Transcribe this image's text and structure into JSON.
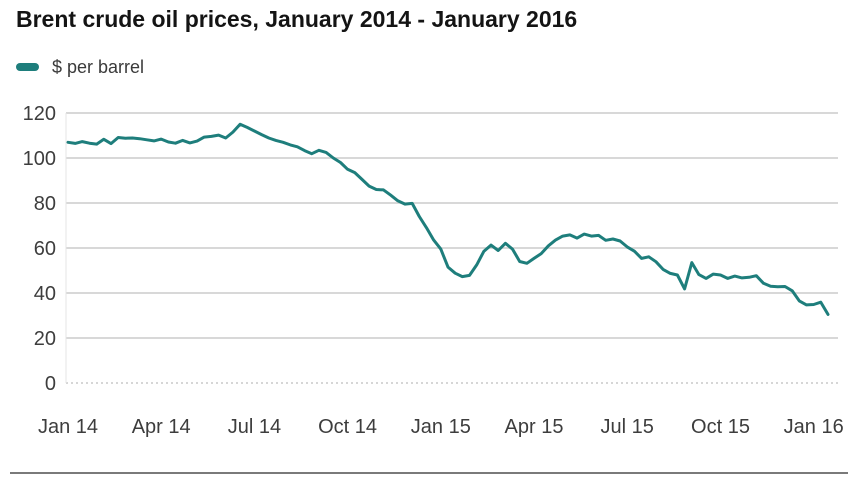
{
  "header": {
    "title": "Brent crude oil prices, January 2014 - January 2016"
  },
  "legend": {
    "label": "$ per barrel"
  },
  "colors": {
    "line": "#1E7E7C",
    "grid": "#cbcbcb",
    "baseline_dotted": "#c8c8c8",
    "axis_spine": "#e4e4e4",
    "axis_text": "#3d3d3d",
    "title_text": "#141414",
    "bottom_rule": "#7a7a7a",
    "background": "#ffffff"
  },
  "chart_data": {
    "type": "line",
    "title": "Brent crude oil prices, January 2014 - January 2016",
    "xlabel": "",
    "ylabel": "$ per barrel",
    "ylim": [
      0,
      120
    ],
    "y_ticks": [
      0,
      20,
      40,
      60,
      80,
      100,
      120
    ],
    "grid": "horizontal gridlines on, zero line dotted",
    "legend_position": "top-left",
    "x_tick_labels": [
      "Jan 14",
      "Apr 14",
      "Jul 14",
      "Oct 14",
      "Jan 15",
      "Apr 15",
      "Jul 15",
      "Oct 15",
      "Jan 16"
    ],
    "x_tick_indices": [
      0,
      13,
      26,
      39,
      52,
      65,
      78,
      91,
      104
    ],
    "x_unit": "weeks from January 2014",
    "series": [
      {
        "name": "$ per barrel",
        "color": "#1E7E7C",
        "values": [
          107.0,
          106.5,
          107.3,
          106.6,
          106.2,
          108.3,
          106.4,
          109.1,
          108.8,
          108.9,
          108.6,
          108.1,
          107.6,
          108.4,
          107.1,
          106.6,
          107.8,
          106.7,
          107.5,
          109.3,
          109.6,
          110.2,
          108.9,
          111.5,
          115.0,
          113.6,
          112.0,
          110.4,
          108.9,
          107.8,
          107.0,
          105.8,
          105.0,
          103.3,
          101.9,
          103.4,
          102.5,
          100.0,
          98.0,
          95.0,
          93.5,
          90.5,
          87.5,
          86.0,
          85.8,
          83.5,
          81.0,
          79.5,
          79.8,
          74.0,
          69.0,
          63.5,
          59.5,
          51.5,
          48.8,
          47.3,
          47.8,
          52.5,
          58.5,
          61.3,
          58.9,
          62.1,
          59.5,
          54.0,
          53.2,
          55.4,
          57.5,
          61.0,
          63.5,
          65.3,
          65.8,
          64.4,
          66.2,
          65.3,
          65.6,
          63.4,
          64.0,
          63.1,
          60.5,
          58.6,
          55.4,
          56.1,
          53.9,
          50.5,
          48.7,
          48.0,
          41.8,
          53.5,
          48.2,
          46.5,
          48.4,
          48.0,
          46.5,
          47.5,
          46.7,
          47.0,
          47.7,
          44.3,
          43.0,
          42.8,
          42.9,
          41.0,
          36.5,
          34.7,
          34.9,
          35.9,
          30.5
        ]
      }
    ]
  }
}
